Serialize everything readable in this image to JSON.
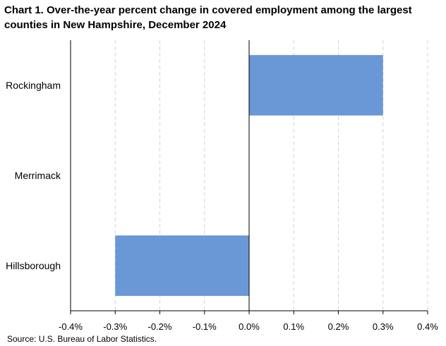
{
  "title": "Chart 1. Over-the-year percent change in covered employment among the largest counties in New Hampshire, December 2024",
  "source": "Source:  U.S. Bureau of Labor Statistics.",
  "chart_data": {
    "type": "bar",
    "orientation": "horizontal",
    "categories": [
      "Rockingham",
      "Merrimack",
      "Hillsborough"
    ],
    "values": [
      0.3,
      0.0,
      -0.3
    ],
    "xlim": [
      -0.4,
      0.4
    ],
    "xticks": [
      -0.4,
      -0.3,
      -0.2,
      -0.1,
      0.0,
      0.1,
      0.2,
      0.3,
      0.4
    ],
    "xtick_labels": [
      "-0.4%",
      "-0.3%",
      "-0.2%",
      "-0.1%",
      "0.0%",
      "0.1%",
      "0.2%",
      "0.3%",
      "0.4%"
    ],
    "grid": "vertical dashed",
    "bar_color": "#6a98d6"
  }
}
